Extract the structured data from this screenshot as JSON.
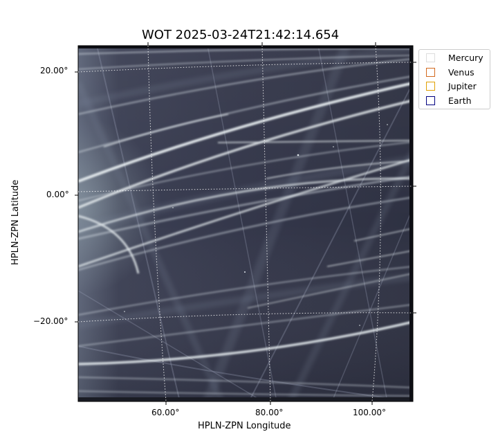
{
  "title": "WOT 2025-03-24T21:42:14.654",
  "axes": {
    "xlabel": "HPLN-ZPN Longitude",
    "ylabel": "HPLN-ZPN Latitude",
    "x_ticks": [
      "60.00°",
      "80.00°",
      "100.00°"
    ],
    "y_ticks": [
      "20.00°",
      "0.00°",
      "−20.00°"
    ]
  },
  "legend": {
    "items": [
      {
        "label": "Mercury",
        "color": "#dddddd"
      },
      {
        "label": "Venus",
        "color": "#d2691e"
      },
      {
        "label": "Jupiter",
        "color": "#e0a000"
      },
      {
        "label": "Earth",
        "color": "#000080"
      }
    ]
  },
  "image": {
    "description_colormap": "bone",
    "background": "#3a3d52"
  }
}
